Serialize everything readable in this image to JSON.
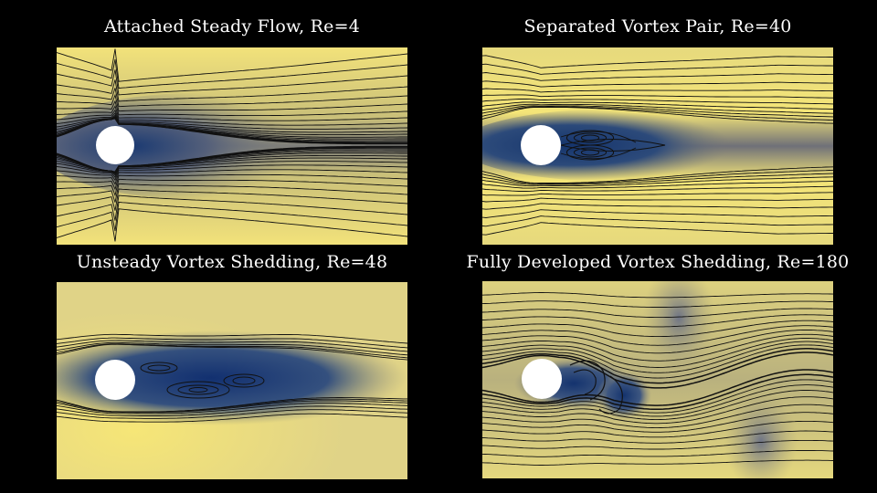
{
  "panels": [
    {
      "id": "attached",
      "title": "Attached Steady Flow, Re=4",
      "regime": "attached steady",
      "wake": "narrow symmetric, streamlines hugging cylinder"
    },
    {
      "id": "separated",
      "title": "Separated Vortex Pair, Re=40",
      "regime": "steady separated",
      "wake": "symmetric recirculation bubble with two closed vortices"
    },
    {
      "id": "unsteady",
      "title": "Unsteady Vortex Shedding, Re=48",
      "regime": "onset of shedding",
      "wake": "slightly asymmetric elongated recirculation"
    },
    {
      "id": "developed",
      "title": "Fully Developed Vortex Shedding, Re=180",
      "regime": "periodic shedding",
      "wake": "oscillating streamlines with alternating vortices"
    }
  ],
  "colors": {
    "background": "#000000",
    "field_high": "#f2e27a",
    "field_mid": "#8e8b78",
    "field_low": "#16356e",
    "streamline": "#111111",
    "cylinder": "#ffffff",
    "title": "#ffffff"
  }
}
